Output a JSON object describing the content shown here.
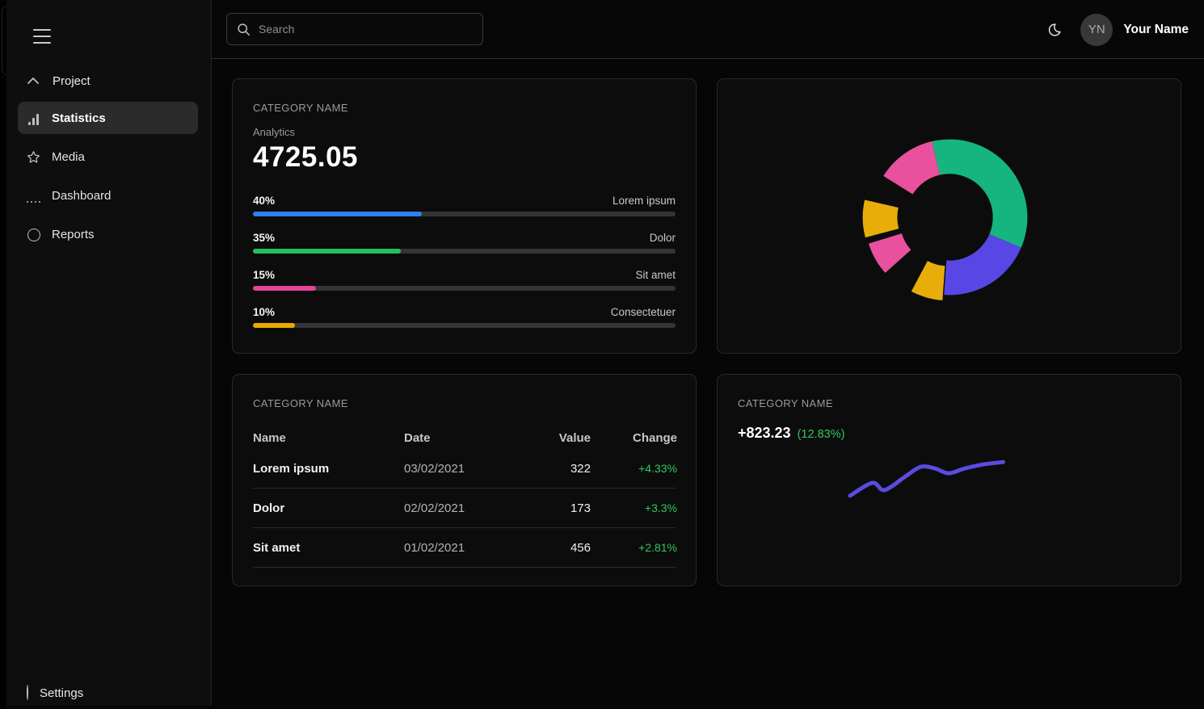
{
  "colors": {
    "positive_green": "#31c75e",
    "progress_blue": "#2e7ff2",
    "progress_green": "#24bf5c",
    "progress_pink": "#e5429a",
    "progress_yellow": "#e9ab00",
    "donut_green": "#16b580",
    "donut_blue": "#5847e4",
    "donut_pink": "#e9509e",
    "donut_yellow": "#e9ad0a",
    "trend_line": "#5b4be0"
  },
  "sidebar": {
    "group_label": "Project",
    "items": [
      {
        "label": "Statistics",
        "icon": "bar-chart-icon",
        "active": true
      },
      {
        "label": "Media",
        "icon": "star-icon",
        "active": false
      },
      {
        "label": "Dashboard",
        "icon": "grid-icon",
        "active": false
      },
      {
        "label": "Reports",
        "icon": "circle-icon",
        "active": false
      }
    ],
    "footer_item": {
      "label": "Settings",
      "icon": "circle-icon"
    }
  },
  "topbar": {
    "search_placeholder": "Search",
    "theme_icon": "moon-icon",
    "user": {
      "initials": "YN",
      "name": "Your Name"
    }
  },
  "cards": {
    "analytics": {
      "category_label": "CATEGORY NAME",
      "subtitle": "Analytics",
      "value": "4725.05",
      "bars": [
        {
          "percent_label": "40%",
          "percent": 40,
          "label": "Lorem ipsum",
          "color": "#2e7ff2"
        },
        {
          "percent_label": "35%",
          "percent": 35,
          "label": "Dolor",
          "color": "#24bf5c"
        },
        {
          "percent_label": "15%",
          "percent": 15,
          "label": "Sit amet",
          "color": "#e5429a"
        },
        {
          "percent_label": "10%",
          "percent": 10,
          "label": "Consectetuer",
          "color": "#e9ab00"
        }
      ]
    },
    "table": {
      "category_label": "CATEGORY NAME",
      "headers": [
        "Name",
        "Date",
        "Value",
        "Change"
      ],
      "rows": [
        {
          "name": "Lorem ipsum",
          "date": "03/02/2021",
          "value": "322",
          "change": "+4.33%"
        },
        {
          "name": "Dolor",
          "date": "02/02/2021",
          "value": "173",
          "change": "+3.3%"
        },
        {
          "name": "Sit amet",
          "date": "01/02/2021",
          "value": "456",
          "change": "+2.81%"
        }
      ]
    },
    "trend": {
      "category_label": "CATEGORY NAME",
      "value": "+823.23",
      "change": "(12.83%)"
    }
  },
  "chart_data": [
    {
      "type": "bar",
      "title": "CATEGORY NAME — Analytics",
      "categories": [
        "Lorem ipsum",
        "Dolor",
        "Sit amet",
        "Consectetuer"
      ],
      "values": [
        40,
        35,
        15,
        10
      ],
      "unit": "%",
      "colors": [
        "#2e7ff2",
        "#24bf5c",
        "#e5429a",
        "#e9ab00"
      ],
      "xlabel": "",
      "ylabel": "",
      "orientation": "horizontal-progress"
    },
    {
      "type": "pie",
      "style": "donut",
      "inner_radius_ratio": 0.56,
      "legend": "none",
      "segments": [
        {
          "color": "#16b580",
          "start_deg": 347,
          "end_deg": 473,
          "approx_percent": 35,
          "offset": 0
        },
        {
          "color": "#5847e4",
          "start_deg": 113,
          "end_deg": 184,
          "approx_percent": 20,
          "offset": 0
        },
        {
          "color": "#e9ad0a",
          "start_deg": 184,
          "end_deg": 208,
          "approx_percent": 7,
          "offset": 7
        },
        {
          "color": "#e9509e",
          "start_deg": 228,
          "end_deg": 253,
          "approx_percent": 7,
          "offset": 9
        },
        {
          "color": "#e9ad0a",
          "start_deg": 255,
          "end_deg": 283,
          "approx_percent": 8,
          "offset": 11
        },
        {
          "color": "#e9509e",
          "start_deg": 302,
          "end_deg": 347,
          "approx_percent": 12,
          "offset": 0
        }
      ]
    },
    {
      "type": "line",
      "title": "CATEGORY NAME — +823.23 (12.83%)",
      "color": "#5b4be0",
      "stroke_width": 5,
      "grid": false,
      "axes": "none",
      "points": [
        [
          164,
          151
        ],
        [
          192,
          135
        ],
        [
          207,
          144
        ],
        [
          233,
          127
        ],
        [
          252,
          115
        ],
        [
          270,
          117
        ],
        [
          287,
          123
        ],
        [
          307,
          117
        ],
        [
          330,
          112
        ],
        [
          355,
          109
        ]
      ]
    }
  ]
}
